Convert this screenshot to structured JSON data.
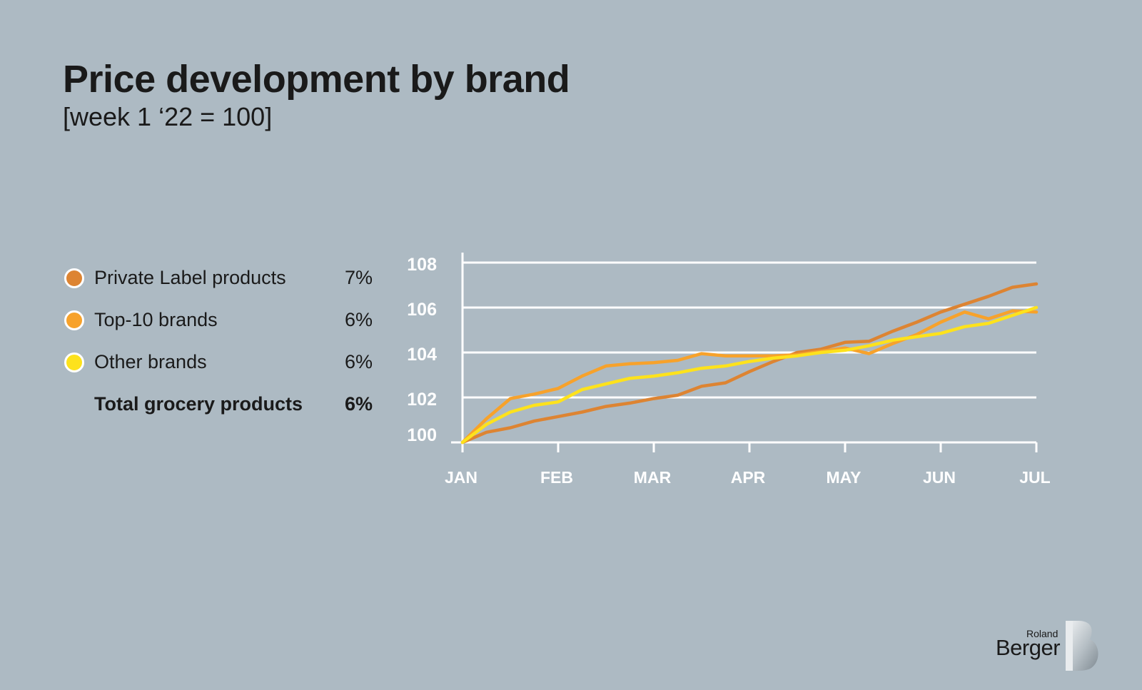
{
  "header": {
    "title": "Price development by brand",
    "subtitle": "[week 1 ‘22 = 100]"
  },
  "legend": [
    {
      "label": "Private Label products",
      "value": "7%",
      "color": "#dd8432"
    },
    {
      "label": "Top-10 brands",
      "value": "6%",
      "color": "#f7a22b"
    },
    {
      "label": "Other brands",
      "value": "6%",
      "color": "#fde21c"
    },
    {
      "label": "Total grocery products",
      "value": "6%",
      "color": ""
    }
  ],
  "logo": {
    "small": "Roland",
    "big": "Berger"
  },
  "colors": {
    "grid": "#ffffff",
    "axis": "#ffffff",
    "tick_label": "#ffffff"
  },
  "chart_data": {
    "type": "line",
    "title": "Price development by brand",
    "subtitle": "[week 1 ‘22 = 100]",
    "xlabel": "",
    "ylabel": "",
    "ylim": [
      100,
      108
    ],
    "yticks": [
      100,
      102,
      104,
      106,
      108
    ],
    "xlim": [
      0,
      6
    ],
    "xticks": [
      0,
      1,
      2,
      3,
      4,
      5,
      6
    ],
    "xtick_labels": [
      "JAN",
      "FEB",
      "MAR",
      "APR",
      "MAY",
      "JUN",
      "JUL"
    ],
    "grid": "horizontal",
    "series": [
      {
        "name": "Private Label products",
        "color": "#dd8432",
        "x": [
          0,
          0.25,
          0.5,
          0.75,
          1,
          1.25,
          1.5,
          1.75,
          2,
          2.25,
          2.5,
          2.75,
          3,
          3.25,
          3.5,
          3.75,
          4,
          4.25,
          4.5,
          4.75,
          5,
          5.25,
          5.5,
          5.75,
          6
        ],
        "values": [
          100,
          100.45,
          100.65,
          100.95,
          101.15,
          101.35,
          101.6,
          101.75,
          101.95,
          102.1,
          102.5,
          102.65,
          103.15,
          103.6,
          104.0,
          104.15,
          104.45,
          104.5,
          104.95,
          105.35,
          105.8,
          106.15,
          106.5,
          106.9,
          107.05
        ]
      },
      {
        "name": "Top-10 brands",
        "color": "#f7a22b",
        "x": [
          0,
          0.25,
          0.5,
          0.75,
          1,
          1.25,
          1.5,
          1.75,
          2,
          2.25,
          2.5,
          2.75,
          3,
          3.25,
          3.5,
          3.75,
          4,
          4.25,
          4.5,
          4.75,
          5,
          5.25,
          5.5,
          5.75,
          6
        ],
        "values": [
          100,
          101.05,
          101.95,
          102.15,
          102.4,
          102.95,
          103.4,
          103.5,
          103.55,
          103.65,
          103.95,
          103.85,
          103.85,
          103.85,
          103.9,
          104.05,
          104.2,
          103.95,
          104.4,
          104.8,
          105.35,
          105.8,
          105.5,
          105.85,
          105.8
        ]
      },
      {
        "name": "Other brands",
        "color": "#fde21c",
        "x": [
          0,
          0.25,
          0.5,
          0.75,
          1,
          1.25,
          1.5,
          1.75,
          2,
          2.25,
          2.5,
          2.75,
          3,
          3.25,
          3.5,
          3.75,
          4,
          4.25,
          4.5,
          4.75,
          5,
          5.25,
          5.5,
          5.75,
          6
        ],
        "values": [
          100,
          100.8,
          101.35,
          101.65,
          101.8,
          102.35,
          102.6,
          102.85,
          102.95,
          103.1,
          103.3,
          103.4,
          103.6,
          103.75,
          103.85,
          104.0,
          104.1,
          104.3,
          104.55,
          104.7,
          104.85,
          105.15,
          105.3,
          105.65,
          106.0
        ]
      }
    ]
  }
}
